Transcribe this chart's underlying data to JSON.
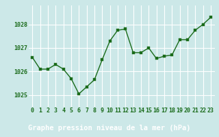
{
  "x": [
    0,
    1,
    2,
    3,
    4,
    5,
    6,
    7,
    8,
    9,
    10,
    11,
    12,
    13,
    14,
    15,
    16,
    17,
    18,
    19,
    20,
    21,
    22,
    23
  ],
  "y": [
    1026.6,
    1026.1,
    1026.1,
    1026.3,
    1026.1,
    1025.7,
    1025.05,
    1025.35,
    1025.65,
    1026.5,
    1027.3,
    1027.75,
    1027.8,
    1026.8,
    1026.8,
    1027.0,
    1026.55,
    1026.65,
    1026.7,
    1027.35,
    1027.35,
    1027.75,
    1028.0,
    1028.3
  ],
  "line_color": "#1a6b1a",
  "marker_color": "#1a6b1a",
  "bg_color": "#cce8e8",
  "grid_color": "#ffffff",
  "xlabel": "Graphe pression niveau de la mer (hPa)",
  "xlabel_color": "#1a6b1a",
  "xlabel_fontsize": 7.5,
  "tick_color": "#1a6b1a",
  "tick_fontsize": 6.0,
  "ylim": [
    1024.5,
    1028.8
  ],
  "yticks": [
    1025,
    1026,
    1027,
    1028
  ],
  "xlim": [
    -0.5,
    23.5
  ],
  "xticks": [
    0,
    1,
    2,
    3,
    4,
    5,
    6,
    7,
    8,
    9,
    10,
    11,
    12,
    13,
    14,
    15,
    16,
    17,
    18,
    19,
    20,
    21,
    22,
    23
  ],
  "xtick_labels": [
    "0",
    "1",
    "2",
    "3",
    "4",
    "5",
    "6",
    "7",
    "8",
    "9",
    "10",
    "11",
    "12",
    "13",
    "14",
    "15",
    "16",
    "17",
    "18",
    "19",
    "20",
    "21",
    "22",
    "23"
  ],
  "bottom_bar_color": "#3a7a3a"
}
